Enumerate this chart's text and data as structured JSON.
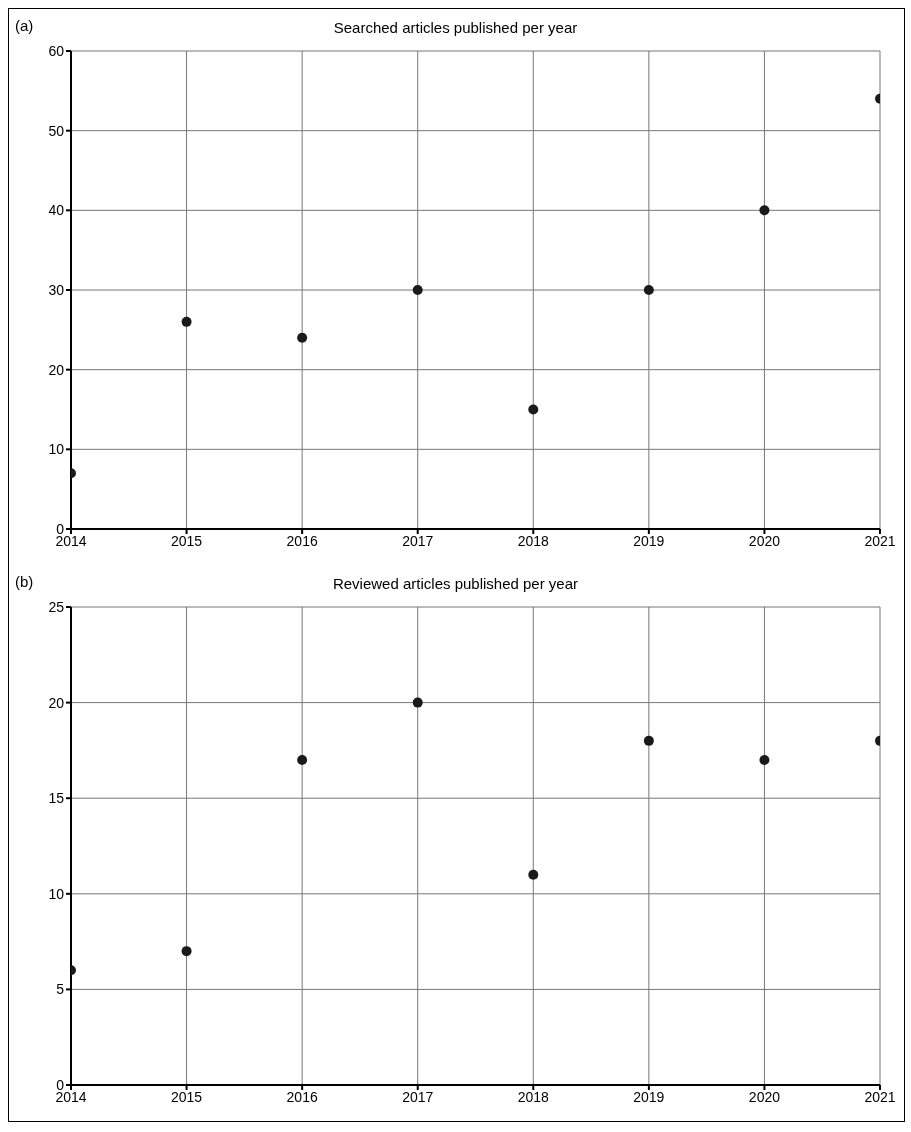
{
  "chart_data": [
    {
      "type": "scatter",
      "title": "Searched articles published per year",
      "annotations": [
        "(a)"
      ],
      "x": [
        2014,
        2015,
        2016,
        2017,
        2018,
        2019,
        2020,
        2021
      ],
      "values": [
        7,
        26,
        24,
        30,
        15,
        30,
        40,
        54
      ],
      "color": "#1a1a1a",
      "marker": "circle",
      "xlim": [
        2014,
        2021
      ],
      "xticks": [
        2014,
        2015,
        2016,
        2017,
        2018,
        2019,
        2020,
        2021
      ],
      "ylim": [
        0,
        60
      ],
      "yticks": [
        0,
        10,
        20,
        30,
        40,
        50,
        60
      ],
      "grid": true
    },
    {
      "type": "scatter",
      "title": "Reviewed articles published per year",
      "annotations": [
        "(b)"
      ],
      "x": [
        2014,
        2015,
        2016,
        2017,
        2018,
        2019,
        2020,
        2021
      ],
      "values": [
        6,
        7,
        17,
        20,
        11,
        18,
        17,
        18
      ],
      "color": "#1a1a1a",
      "marker": "circle",
      "xlim": [
        2014,
        2021
      ],
      "xticks": [
        2014,
        2015,
        2016,
        2017,
        2018,
        2019,
        2020,
        2021
      ],
      "ylim": [
        0,
        25
      ],
      "yticks": [
        0,
        5,
        10,
        15,
        20,
        25
      ],
      "grid": true
    }
  ]
}
